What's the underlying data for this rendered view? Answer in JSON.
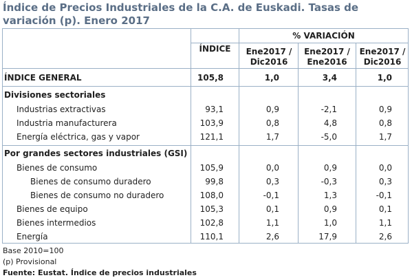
{
  "title": "Índice de Precios Industriales de la C.A. de Euskadi. Tasas de variación (p). Enero 2017",
  "headers": {
    "indice": "ÍNDICE",
    "variacion": "% VARIACIÓN",
    "col1": "Ene2017 / Dic2016",
    "col2": "Ene2017 / Ene2016",
    "col3": "Ene2017 / Dic2016"
  },
  "rows": [
    {
      "label": "ÍNDICE GENERAL",
      "indice": "105,8",
      "v1": "1,0",
      "v2": "3,4",
      "v3": "1,0"
    },
    {
      "label": "Divisiones sectoriales"
    },
    {
      "label": "Industrias extractivas",
      "indice": "93,1",
      "v1": "0,9",
      "v2": "-2,1",
      "v3": "0,9"
    },
    {
      "label": "Industria manufacturera",
      "indice": "103,9",
      "v1": "0,8",
      "v2": "4,8",
      "v3": "0,8"
    },
    {
      "label": "Energía eléctrica, gas y vapor",
      "indice": "121,1",
      "v1": "1,7",
      "v2": "-5,0",
      "v3": "1,7"
    },
    {
      "label": "Por grandes sectores industriales (GSI)"
    },
    {
      "label": "Bienes de consumo",
      "indice": "105,9",
      "v1": "0,0",
      "v2": "0,9",
      "v3": "0,0"
    },
    {
      "label": "Bienes de consumo duradero",
      "indice": "99,8",
      "v1": "0,3",
      "v2": "-0,3",
      "v3": "0,3"
    },
    {
      "label": "Bienes de consumo no duradero",
      "indice": "108,0",
      "v1": "-0,1",
      "v2": "1,3",
      "v3": "-0,1"
    },
    {
      "label": "Bienes de equipo",
      "indice": "105,3",
      "v1": "0,1",
      "v2": "0,9",
      "v3": "0,1"
    },
    {
      "label": "Bienes intermedios",
      "indice": "102,8",
      "v1": "1,1",
      "v2": "1,0",
      "v3": "1,1"
    },
    {
      "label": "Energía",
      "indice": "110,1",
      "v1": "2,6",
      "v2": "17,9",
      "v3": "2,6"
    }
  ],
  "footnotes": {
    "base": "Base 2010=100",
    "provisional": "(p) Provisional",
    "fuente": "Fuente: Eustat. Índice de precios industriales"
  }
}
